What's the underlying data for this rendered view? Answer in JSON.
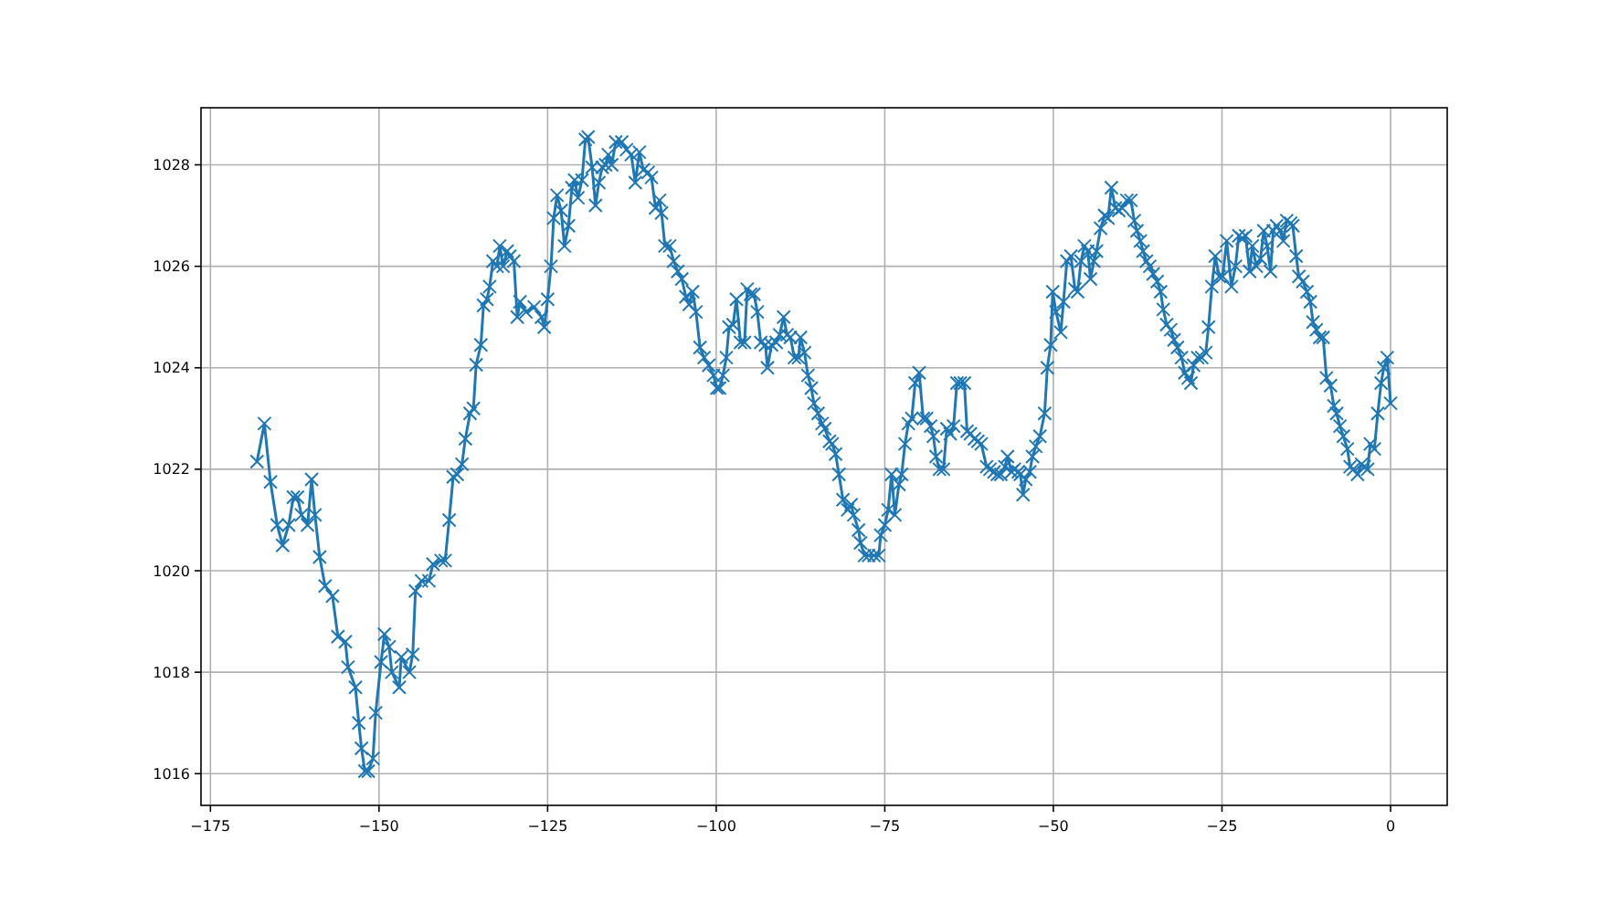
{
  "chart_data": {
    "type": "line",
    "x": [
      -168.1,
      -167.0,
      -166.1,
      -165.1,
      -164.3,
      -163.4,
      -162.7,
      -162.1,
      -161.5,
      -160.6,
      -160.0,
      -159.5,
      -158.8,
      -158.0,
      -156.9,
      -156.1,
      -155.0,
      -154.6,
      -153.5,
      -153.0,
      -152.6,
      -152.1,
      -151.6,
      -150.9,
      -150.5,
      -149.7,
      -149.2,
      -148.5,
      -148.1,
      -147.0,
      -146.7,
      -145.5,
      -145.0,
      -144.6,
      -143.7,
      -142.6,
      -142.0,
      -140.8,
      -140.2,
      -139.6,
      -139.0,
      -138.4,
      -137.7,
      -137.2,
      -136.5,
      -136.0,
      -135.6,
      -134.9,
      -134.5,
      -134.0,
      -133.6,
      -133.1,
      -132.5,
      -132.1,
      -131.6,
      -131.0,
      -130.6,
      -130.0,
      -129.5,
      -129.1,
      -128.2,
      -127.0,
      -125.9,
      -125.5,
      -125.0,
      -124.5,
      -124.1,
      -123.6,
      -123.0,
      -122.5,
      -121.9,
      -121.4,
      -121.0,
      -120.5,
      -119.9,
      -119.4,
      -119.0,
      -118.4,
      -117.9,
      -117.4,
      -116.9,
      -116.4,
      -116.0,
      -115.5,
      -114.9,
      -114.0,
      -113.3,
      -112.6,
      -112.0,
      -111.4,
      -110.8,
      -110.1,
      -109.6,
      -109.0,
      -108.4,
      -108.1,
      -107.6,
      -106.9,
      -106.3,
      -105.7,
      -105.1,
      -104.5,
      -104.0,
      -103.5,
      -103.0,
      -102.4,
      -101.8,
      -101.1,
      -100.4,
      -99.9,
      -99.5,
      -99.0,
      -98.5,
      -98.1,
      -97.5,
      -97.0,
      -96.4,
      -95.8,
      -95.4,
      -94.9,
      -94.4,
      -93.9,
      -93.4,
      -92.7,
      -92.4,
      -91.8,
      -91.1,
      -90.6,
      -90.0,
      -89.5,
      -89.0,
      -88.4,
      -87.8,
      -87.5,
      -86.9,
      -86.4,
      -85.9,
      -85.5,
      -84.9,
      -84.3,
      -83.9,
      -83.2,
      -82.8,
      -82.3,
      -81.8,
      -81.2,
      -80.5,
      -80.0,
      -79.6,
      -78.9,
      -78.6,
      -78.0,
      -77.4,
      -76.6,
      -75.9,
      -75.6,
      -75.0,
      -74.5,
      -74.0,
      -73.5,
      -72.9,
      -72.5,
      -72.0,
      -71.5,
      -71.0,
      -70.5,
      -69.9,
      -69.3,
      -68.8,
      -68.2,
      -67.8,
      -67.4,
      -66.9,
      -66.3,
      -65.8,
      -65.3,
      -64.8,
      -64.3,
      -63.8,
      -63.2,
      -62.8,
      -62.3,
      -61.7,
      -61.2,
      -60.7,
      -59.9,
      -59.4,
      -58.8,
      -58.3,
      -57.8,
      -57.2,
      -56.8,
      -56.2,
      -55.8,
      -55.2,
      -54.9,
      -54.5,
      -54.1,
      -53.5,
      -53.1,
      -52.6,
      -52.0,
      -51.3,
      -50.9,
      -50.4,
      -50.1,
      -49.6,
      -48.9,
      -48.5,
      -48.0,
      -47.4,
      -46.8,
      -46.4,
      -45.9,
      -45.4,
      -44.9,
      -44.5,
      -44.0,
      -43.6,
      -43.0,
      -42.4,
      -41.9,
      -41.4,
      -40.8,
      -40.3,
      -39.8,
      -39.1,
      -38.5,
      -38.0,
      -37.6,
      -37.1,
      -36.7,
      -36.2,
      -35.7,
      -35.2,
      -34.6,
      -34.1,
      -33.7,
      -33.2,
      -32.6,
      -32.1,
      -31.6,
      -31.0,
      -30.5,
      -30.0,
      -29.6,
      -29.2,
      -28.6,
      -28.0,
      -27.4,
      -27.0,
      -26.5,
      -26.0,
      -25.4,
      -24.9,
      -24.3,
      -23.6,
      -23.0,
      -22.5,
      -22.0,
      -21.5,
      -20.9,
      -20.5,
      -19.9,
      -19.3,
      -18.8,
      -18.3,
      -17.8,
      -17.4,
      -16.9,
      -16.4,
      -15.9,
      -15.4,
      -14.8,
      -14.5,
      -14.0,
      -13.6,
      -13.0,
      -12.4,
      -11.9,
      -11.5,
      -11.0,
      -10.5,
      -10.0,
      -9.5,
      -8.9,
      -8.4,
      -8.0,
      -7.5,
      -7.0,
      -6.4,
      -6.0,
      -5.5,
      -4.9,
      -4.3,
      -3.9,
      -3.4,
      -3.0,
      -2.4,
      -1.9,
      -1.4,
      -1.0,
      -0.5,
      0.0
    ],
    "series": [
      {
        "color": "#1f77b4",
        "values": [
          1022.15,
          1022.9,
          1021.75,
          1020.9,
          1020.5,
          1020.9,
          1021.45,
          1021.45,
          1021.1,
          1020.9,
          1021.8,
          1021.1,
          1020.27,
          1019.7,
          1019.5,
          1018.7,
          1018.6,
          1018.1,
          1017.7,
          1017.0,
          1016.5,
          1016.05,
          1016.05,
          1016.3,
          1017.2,
          1018.2,
          1018.75,
          1018.5,
          1018.0,
          1017.7,
          1018.3,
          1018.0,
          1018.35,
          1019.6,
          1019.8,
          1019.8,
          1020.13,
          1020.2,
          1020.2,
          1021.0,
          1021.85,
          1021.9,
          1022.1,
          1022.6,
          1023.1,
          1023.2,
          1024.06,
          1024.45,
          1025.23,
          1025.35,
          1025.6,
          1026.1,
          1026.0,
          1026.4,
          1026.0,
          1026.3,
          1026.2,
          1026.1,
          1025.0,
          1025.3,
          1025.1,
          1025.2,
          1025.0,
          1024.8,
          1025.35,
          1026.0,
          1026.95,
          1027.4,
          1027.1,
          1026.4,
          1026.8,
          1027.55,
          1027.7,
          1027.35,
          1027.7,
          1028.5,
          1028.55,
          1027.95,
          1027.2,
          1027.65,
          1027.95,
          1028.0,
          1028.2,
          1028.0,
          1028.45,
          1028.45,
          1028.3,
          1028.2,
          1027.65,
          1028.25,
          1027.9,
          1027.85,
          1027.75,
          1027.15,
          1027.3,
          1027.05,
          1026.4,
          1026.4,
          1026.1,
          1025.9,
          1025.75,
          1025.4,
          1025.25,
          1025.5,
          1025.1,
          1024.4,
          1024.2,
          1024.05,
          1023.85,
          1023.6,
          1023.6,
          1023.85,
          1024.2,
          1024.8,
          1024.85,
          1025.35,
          1024.5,
          1024.5,
          1025.55,
          1025.45,
          1025.45,
          1025.1,
          1024.5,
          1024.45,
          1024.0,
          1024.45,
          1024.5,
          1024.65,
          1025.0,
          1024.65,
          1024.6,
          1024.2,
          1024.2,
          1024.6,
          1024.3,
          1023.85,
          1023.6,
          1023.3,
          1023.1,
          1022.9,
          1022.8,
          1022.55,
          1022.5,
          1022.3,
          1021.9,
          1021.4,
          1021.2,
          1021.3,
          1021.1,
          1020.8,
          1020.55,
          1020.3,
          1020.3,
          1020.3,
          1020.3,
          1020.7,
          1020.9,
          1021.2,
          1021.9,
          1021.1,
          1021.7,
          1021.9,
          1022.5,
          1022.9,
          1023.0,
          1023.7,
          1023.9,
          1023.0,
          1023.0,
          1022.85,
          1022.65,
          1022.25,
          1022.0,
          1022.0,
          1022.8,
          1022.7,
          1022.85,
          1023.7,
          1023.7,
          1023.7,
          1022.75,
          1022.7,
          1022.6,
          1022.55,
          1022.5,
          1022.05,
          1022.0,
          1021.95,
          1021.9,
          1021.9,
          1022.05,
          1022.25,
          1021.95,
          1022.0,
          1021.95,
          1021.9,
          1021.5,
          1021.8,
          1021.95,
          1022.25,
          1022.45,
          1022.65,
          1023.1,
          1024.0,
          1024.45,
          1025.5,
          1025.1,
          1024.7,
          1025.3,
          1026.1,
          1026.2,
          1025.55,
          1025.5,
          1026.1,
          1026.4,
          1026.3,
          1025.75,
          1026.1,
          1026.3,
          1026.75,
          1027.0,
          1026.95,
          1027.55,
          1027.15,
          1027.1,
          1027.15,
          1027.3,
          1027.3,
          1026.9,
          1026.7,
          1026.5,
          1026.3,
          1026.1,
          1026.0,
          1025.85,
          1025.7,
          1025.5,
          1025.15,
          1024.85,
          1024.75,
          1024.55,
          1024.4,
          1024.2,
          1023.9,
          1023.8,
          1023.7,
          1024.05,
          1024.2,
          1024.2,
          1024.3,
          1024.8,
          1025.6,
          1026.2,
          1025.8,
          1025.8,
          1026.5,
          1025.6,
          1026.0,
          1026.6,
          1026.55,
          1026.6,
          1025.9,
          1026.4,
          1026.0,
          1026.15,
          1026.7,
          1026.4,
          1025.9,
          1026.7,
          1026.8,
          1026.7,
          1026.5,
          1026.9,
          1026.85,
          1026.8,
          1026.2,
          1025.8,
          1025.7,
          1025.5,
          1025.3,
          1024.9,
          1024.75,
          1024.6,
          1024.6,
          1023.8,
          1023.65,
          1023.25,
          1023.1,
          1022.85,
          1022.65,
          1022.4,
          1022.05,
          1022.0,
          1021.9,
          1022.1,
          1022.05,
          1022.0,
          1022.5,
          1022.4,
          1023.1,
          1023.7,
          1024.0,
          1024.2,
          1023.3
        ]
      }
    ],
    "xlim": [
      -176.4,
      8.4
    ],
    "ylim": [
      1015.375,
      1029.125
    ],
    "xticks": [
      -175,
      -150,
      -125,
      -100,
      -75,
      -50,
      -25,
      0
    ],
    "yticks": [
      1016,
      1018,
      1020,
      1022,
      1024,
      1026,
      1028
    ],
    "grid": true,
    "marker": "cross",
    "line_style": "solid"
  }
}
